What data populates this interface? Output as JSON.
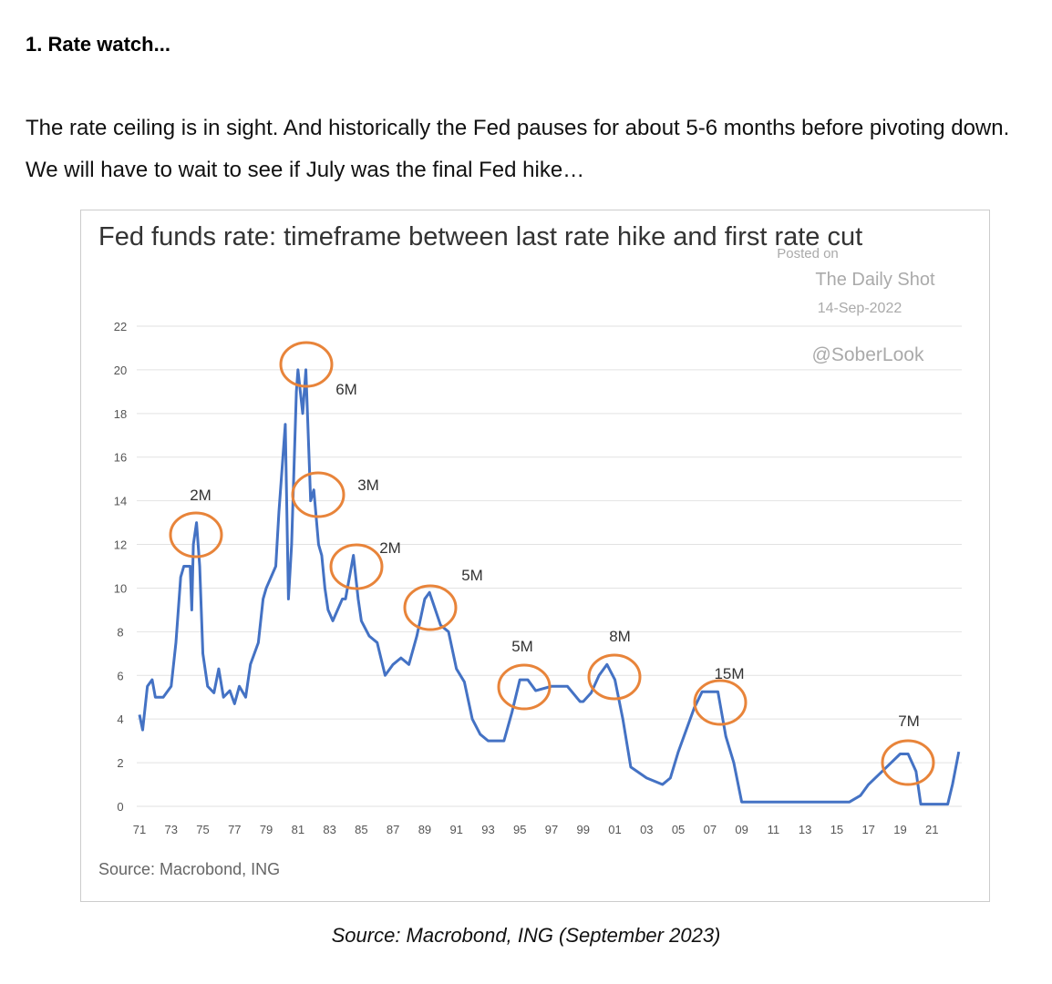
{
  "heading": "1. Rate watch...",
  "paragraph": "The rate ceiling is in sight. And historically the Fed pauses for about 5-6 months before pivoting down. We will have to wait to see if July was the final Fed hike…",
  "caption": "Source: Macrobond, ING (September 2023)",
  "chart_data": {
    "type": "line",
    "title": "Fed funds rate: timeframe between last rate hike and first rate cut",
    "source": "Source: Macrobond, ING",
    "watermark": [
      "Posted on",
      "The Daily Shot",
      "14-Sep-2022",
      "@SoberLook"
    ],
    "annotations": [
      "2M",
      "6M",
      "3M",
      "2M",
      "5M",
      "5M",
      "8M",
      "15M",
      "7M"
    ],
    "x": [
      1971,
      1971.2,
      1971.5,
      1971.8,
      1972,
      1972.5,
      1973,
      1973.3,
      1973.6,
      1973.8,
      1974.2,
      1974.3,
      1974.4,
      1974.6,
      1974.8,
      1975,
      1975.3,
      1975.7,
      1976,
      1976.3,
      1976.7,
      1977,
      1977.3,
      1977.7,
      1978,
      1978.5,
      1978.8,
      1979,
      1979.3,
      1979.6,
      1979.8,
      1980,
      1980.2,
      1980.4,
      1980.6,
      1980.9,
      1981,
      1981.3,
      1981.5,
      1981.8,
      1982,
      1982.3,
      1982.5,
      1982.7,
      1982.9,
      1983.2,
      1983.8,
      1984,
      1984.5,
      1984.8,
      1985,
      1985.5,
      1986,
      1986.5,
      1987,
      1987.5,
      1988,
      1988.5,
      1989,
      1989.3,
      1990,
      1990.5,
      1991,
      1991.5,
      1992,
      1992.5,
      1993,
      1994,
      1994.5,
      1995,
      1995.5,
      1996,
      1997,
      1998,
      1998.8,
      1999,
      1999.5,
      2000,
      2000.5,
      2001,
      2001.5,
      2002,
      2003,
      2004,
      2004.5,
      2005,
      2006,
      2006.5,
      2007.5,
      2008,
      2008.5,
      2009,
      2015.8,
      2016.5,
      2017,
      2018,
      2019,
      2019.5,
      2020,
      2020.3,
      2022,
      2022.3,
      2022.7
    ],
    "series": [
      {
        "name": "Fed funds rate",
        "color": "#4472c4",
        "values": [
          4.2,
          3.5,
          5.5,
          5.8,
          5,
          5,
          5.5,
          7.5,
          10.5,
          11,
          11,
          9,
          12,
          13,
          11,
          7,
          5.5,
          5.2,
          6.3,
          5,
          5.3,
          4.7,
          5.5,
          5,
          6.5,
          7.5,
          9.5,
          10,
          10.5,
          11,
          13.5,
          15.5,
          17.5,
          9.5,
          12,
          19,
          20,
          18,
          20,
          14,
          14.5,
          12,
          11.5,
          10,
          9,
          8.5,
          9.5,
          9.5,
          11.5,
          9.5,
          8.5,
          7.8,
          7.5,
          6,
          6.5,
          6.8,
          6.5,
          7.8,
          9.5,
          9.8,
          8.3,
          8,
          6.3,
          5.7,
          4,
          3.3,
          3,
          3,
          4.3,
          5.8,
          5.8,
          5.3,
          5.5,
          5.5,
          4.8,
          4.8,
          5.2,
          6,
          6.5,
          5.8,
          4,
          1.8,
          1.3,
          1,
          1.3,
          2.5,
          4.5,
          5.25,
          5.25,
          3.2,
          2,
          0.2,
          0.2,
          0.5,
          1,
          1.7,
          2.4,
          2.4,
          1.6,
          0.1,
          0.1,
          1,
          2.5
        ]
      }
    ],
    "xlim": [
      1971,
      2023
    ],
    "xticks": [
      {
        "value": 1971,
        "label": "71"
      },
      {
        "value": 1973,
        "label": "73"
      },
      {
        "value": 1975,
        "label": "75"
      },
      {
        "value": 1977,
        "label": "77"
      },
      {
        "value": 1979,
        "label": "79"
      },
      {
        "value": 1981,
        "label": "81"
      },
      {
        "value": 1983,
        "label": "83"
      },
      {
        "value": 1985,
        "label": "85"
      },
      {
        "value": 1987,
        "label": "87"
      },
      {
        "value": 1989,
        "label": "89"
      },
      {
        "value": 1991,
        "label": "91"
      },
      {
        "value": 1993,
        "label": "93"
      },
      {
        "value": 1995,
        "label": "95"
      },
      {
        "value": 1997,
        "label": "97"
      },
      {
        "value": 1999,
        "label": "99"
      },
      {
        "value": 2001,
        "label": "01"
      },
      {
        "value": 2003,
        "label": "03"
      },
      {
        "value": 2005,
        "label": "05"
      },
      {
        "value": 2007,
        "label": "07"
      },
      {
        "value": 2009,
        "label": "09"
      },
      {
        "value": 2011,
        "label": "11"
      },
      {
        "value": 2013,
        "label": "13"
      },
      {
        "value": 2015,
        "label": "15"
      },
      {
        "value": 2017,
        "label": "17"
      },
      {
        "value": 2019,
        "label": "19"
      },
      {
        "value": 2021,
        "label": "21"
      }
    ],
    "ylim": [
      0,
      22
    ],
    "yticks": [
      0,
      2,
      4,
      6,
      8,
      10,
      12,
      14,
      16,
      18,
      20,
      22
    ],
    "grid": true
  }
}
